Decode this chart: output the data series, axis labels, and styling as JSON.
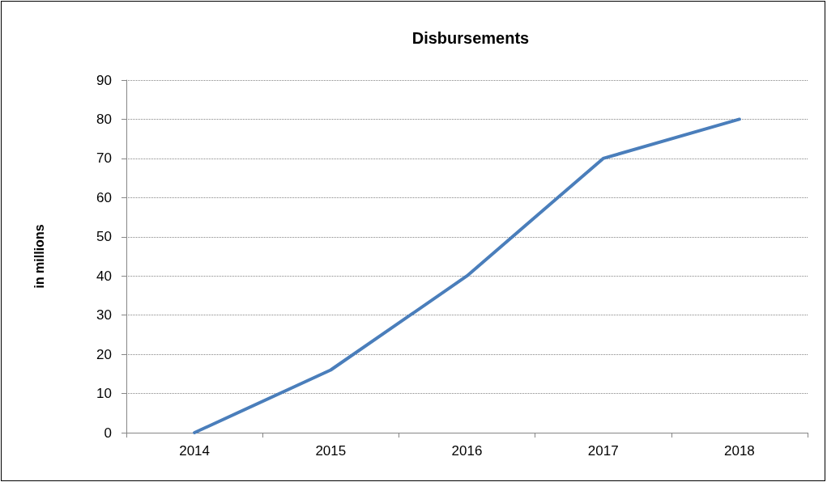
{
  "chart_data": {
    "type": "line",
    "title": "Disbursements",
    "ylabel": "in millions",
    "categories": [
      "2014",
      "2015",
      "2016",
      "2017",
      "2018"
    ],
    "series": [
      {
        "color": "#4a7ebb",
        "values": [
          0,
          16,
          40,
          70,
          80
        ]
      }
    ],
    "ylim": [
      0,
      90
    ],
    "yticks": [
      0,
      10,
      20,
      30,
      40,
      50,
      60,
      70,
      80,
      90
    ],
    "grid": "y",
    "marker": "none",
    "line_style": "solid"
  }
}
